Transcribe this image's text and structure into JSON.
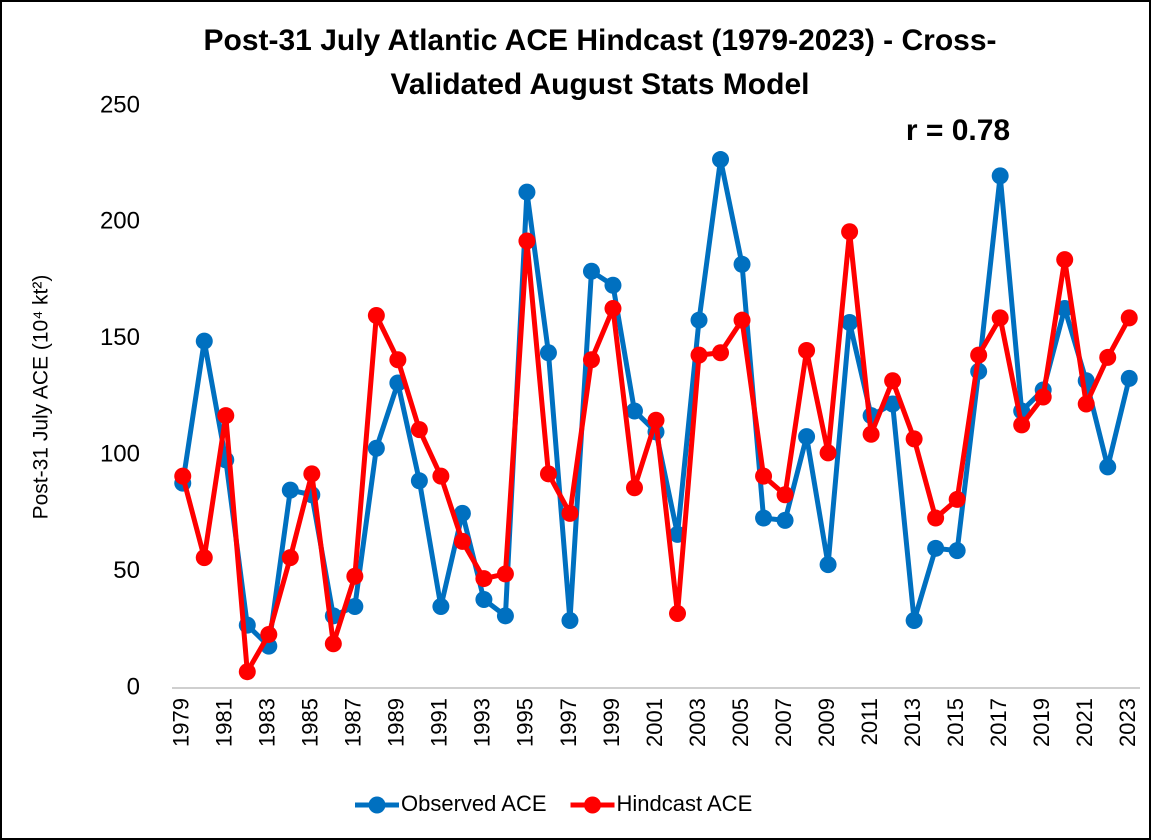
{
  "chart_data": {
    "type": "line",
    "title": [
      "Post-31 July Atlantic ACE Hindcast (1979-2023) - Cross-",
      "Validated August Stats Model"
    ],
    "y_label": "Post-31 July ACE (10⁴ kt²)",
    "annotation": "r = 0.78",
    "categories": [
      "1979",
      null,
      "1981",
      null,
      "1983",
      null,
      "1985",
      null,
      "1987",
      null,
      "1989",
      null,
      "1991",
      null,
      "1993",
      null,
      "1995",
      null,
      "1997",
      null,
      "1999",
      null,
      "2001",
      null,
      "2003",
      null,
      "2005",
      null,
      "2007",
      null,
      "2009",
      null,
      "2011",
      null,
      "2013",
      null,
      "2015",
      null,
      "2017",
      null,
      "2019",
      null,
      "2021",
      null,
      "2023"
    ],
    "series": [
      {
        "name": "Observed ACE",
        "color": "#0070c0",
        "values": [
          88,
          149,
          98,
          27,
          18,
          85,
          83,
          31,
          35,
          103,
          131,
          89,
          35,
          75,
          38,
          31,
          213,
          144,
          29,
          179,
          173,
          119,
          110,
          66,
          158,
          227,
          182,
          73,
          72,
          108,
          53,
          157,
          117,
          122,
          29,
          60,
          59,
          136,
          220,
          119,
          128,
          163,
          132,
          95,
          133
        ]
      },
      {
        "name": "Hindcast ACE",
        "color": "#ff0000",
        "values": [
          91,
          56,
          117,
          7,
          23,
          56,
          92,
          19,
          48,
          160,
          141,
          111,
          91,
          63,
          47,
          49,
          192,
          92,
          75,
          141,
          163,
          86,
          115,
          32,
          143,
          144,
          158,
          91,
          83,
          145,
          101,
          196,
          109,
          132,
          107,
          73,
          81,
          143,
          159,
          113,
          125,
          184,
          122,
          142,
          159
        ]
      }
    ],
    "ylim": [
      0,
      250
    ],
    "yticks": [
      0,
      50,
      100,
      150,
      200,
      250
    ],
    "grid": false,
    "legend": "bottom"
  }
}
